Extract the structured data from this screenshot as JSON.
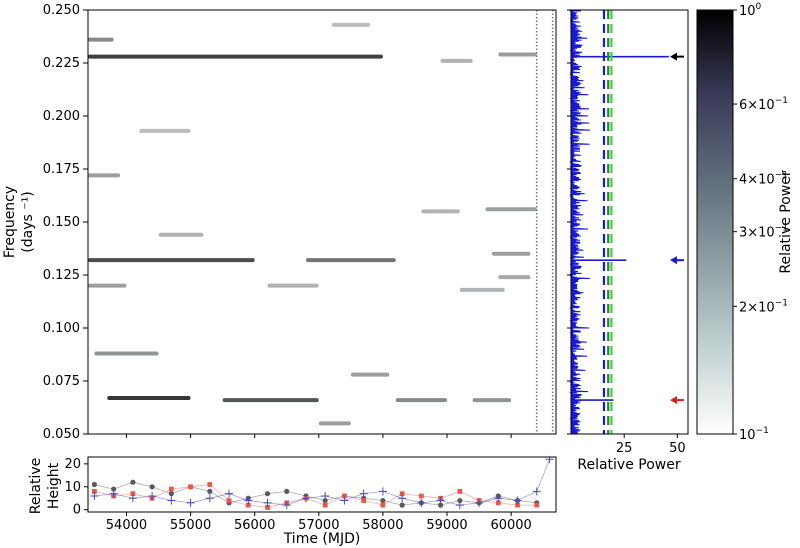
{
  "chart_data": [
    {
      "type": "heatmap",
      "panel": "dynamic-power-spectrum",
      "xlim": [
        53400,
        60700
      ],
      "ylim": [
        0.05,
        0.25
      ],
      "ylabel_line1": "Frequency",
      "ylabel_line2": "(days ⁻¹)",
      "yticks": [
        "0.050",
        "0.075",
        "0.100",
        "0.125",
        "0.150",
        "0.175",
        "0.200",
        "0.225",
        "0.250"
      ],
      "ytick_values": [
        0.05,
        0.075,
        0.1,
        0.125,
        0.15,
        0.175,
        0.2,
        0.225,
        0.25
      ],
      "dotted_markers_x": [
        60400,
        60650
      ],
      "dotted_marker_color": "#2e7d32",
      "features": [
        {
          "x0": 53400,
          "x1": 58000,
          "y": 0.228,
          "intensity": 0.85
        },
        {
          "x0": 53400,
          "x1": 56000,
          "y": 0.132,
          "intensity": 0.8
        },
        {
          "x0": 56800,
          "x1": 58200,
          "y": 0.132,
          "intensity": 0.6
        },
        {
          "x0": 53700,
          "x1": 55000,
          "y": 0.067,
          "intensity": 0.9
        },
        {
          "x0": 55500,
          "x1": 57000,
          "y": 0.066,
          "intensity": 0.75
        },
        {
          "x0": 58200,
          "x1": 59000,
          "y": 0.066,
          "intensity": 0.5
        },
        {
          "x0": 59400,
          "x1": 60000,
          "y": 0.066,
          "intensity": 0.45
        },
        {
          "x0": 53400,
          "x1": 53800,
          "y": 0.236,
          "intensity": 0.5
        },
        {
          "x0": 53400,
          "x1": 53900,
          "y": 0.172,
          "intensity": 0.4
        },
        {
          "x0": 53400,
          "x1": 54000,
          "y": 0.12,
          "intensity": 0.4
        },
        {
          "x0": 53500,
          "x1": 54500,
          "y": 0.088,
          "intensity": 0.45
        },
        {
          "x0": 57500,
          "x1": 58100,
          "y": 0.078,
          "intensity": 0.4
        },
        {
          "x0": 57000,
          "x1": 57500,
          "y": 0.055,
          "intensity": 0.4
        },
        {
          "x0": 58600,
          "x1": 59200,
          "y": 0.155,
          "intensity": 0.3
        },
        {
          "x0": 59600,
          "x1": 60400,
          "y": 0.156,
          "intensity": 0.4
        },
        {
          "x0": 59800,
          "x1": 60300,
          "y": 0.124,
          "intensity": 0.35
        },
        {
          "x0": 59700,
          "x1": 60300,
          "y": 0.135,
          "intensity": 0.4
        },
        {
          "x0": 59800,
          "x1": 60400,
          "y": 0.229,
          "intensity": 0.4
        },
        {
          "x0": 59200,
          "x1": 59900,
          "y": 0.118,
          "intensity": 0.3
        },
        {
          "x0": 56200,
          "x1": 57000,
          "y": 0.12,
          "intensity": 0.3
        },
        {
          "x0": 54500,
          "x1": 55200,
          "y": 0.144,
          "intensity": 0.3
        },
        {
          "x0": 54200,
          "x1": 55000,
          "y": 0.193,
          "intensity": 0.25
        },
        {
          "x0": 57200,
          "x1": 57800,
          "y": 0.243,
          "intensity": 0.25
        },
        {
          "x0": 58900,
          "x1": 59400,
          "y": 0.226,
          "intensity": 0.3
        }
      ]
    },
    {
      "type": "line",
      "panel": "periodogram",
      "xlabel": "Relative Power",
      "xlim": [
        0,
        55
      ],
      "xticks": [
        "25",
        "50"
      ],
      "xtick_values": [
        25,
        50
      ],
      "ylim": [
        0.05,
        0.25
      ],
      "line_color": "#1a1ad0",
      "peaks": [
        {
          "freq": 0.228,
          "power": 46
        },
        {
          "freq": 0.132,
          "power": 26
        },
        {
          "freq": 0.066,
          "power": 20
        }
      ],
      "threshold_lines": [
        {
          "power": 15.5,
          "color": "#1a1ad0"
        },
        {
          "power": 17.5,
          "color": "#2e7d32"
        },
        {
          "power": 19.0,
          "color": "#39d339"
        }
      ],
      "arrows": [
        {
          "freq": 0.228,
          "color": "#000000"
        },
        {
          "freq": 0.132,
          "color": "#1a1ad0"
        },
        {
          "freq": 0.066,
          "color": "#d42020"
        }
      ]
    },
    {
      "type": "scatter",
      "panel": "relative-height",
      "xlabel": "Time (MJD)",
      "ylabel_line1": "Relative",
      "ylabel_line2": "Height",
      "xlim": [
        53400,
        60700
      ],
      "ylim": [
        -1,
        23
      ],
      "xticks": [
        "54000",
        "55000",
        "56000",
        "57000",
        "58000",
        "59000",
        "60000"
      ],
      "xtick_values": [
        54000,
        55000,
        56000,
        57000,
        58000,
        59000,
        60000
      ],
      "yticks": [
        "0",
        "10",
        "20"
      ],
      "ytick_values": [
        0,
        10,
        20
      ],
      "series": [
        {
          "color": "#5a5a5a",
          "marker": "circle",
          "x": [
            53500,
            53800,
            54100,
            54400,
            54700,
            55000,
            55300,
            55600,
            55900,
            56200,
            56500,
            56800,
            57100,
            57400,
            57700,
            58000,
            58300,
            58600,
            58900,
            59200,
            59500,
            59800,
            60100,
            60400
          ],
          "y": [
            11,
            9,
            12,
            10,
            7,
            10,
            8,
            3,
            5,
            7,
            8,
            6,
            4,
            6,
            5,
            4,
            2,
            3,
            2,
            4,
            3,
            6,
            4,
            3
          ]
        },
        {
          "color": "#e55a4e",
          "marker": "square",
          "x": [
            53500,
            53800,
            54100,
            54400,
            54700,
            55000,
            55300,
            55600,
            55900,
            56200,
            56500,
            56800,
            57100,
            57400,
            57700,
            58000,
            58300,
            58600,
            58900,
            59200,
            59500,
            59800,
            60100,
            60400
          ],
          "y": [
            8,
            6,
            7,
            5,
            9,
            10,
            11,
            4,
            2,
            1,
            3,
            5,
            2,
            6,
            4,
            2,
            7,
            6,
            5,
            8,
            4,
            3,
            2,
            2
          ]
        },
        {
          "color": "#4a4ab8",
          "marker": "plus",
          "x": [
            53500,
            53800,
            54100,
            54400,
            54700,
            55000,
            55300,
            55600,
            55900,
            56200,
            56500,
            56800,
            57100,
            57400,
            57700,
            58000,
            58300,
            58600,
            58900,
            59200,
            59500,
            59800,
            60100,
            60400,
            60600
          ],
          "y": [
            6,
            7,
            5,
            6,
            4,
            3,
            5,
            7,
            4,
            3,
            2,
            5,
            6,
            4,
            7,
            8,
            5,
            3,
            4,
            2,
            3,
            5,
            4,
            8,
            22
          ]
        }
      ]
    },
    {
      "type": "colorbar",
      "panel": "colorbar",
      "label": "Relative Power",
      "scale": "log",
      "range": [
        0.1,
        1
      ],
      "ticks": [
        {
          "value": 1.0,
          "base": "10",
          "exp": "0"
        },
        {
          "value": 0.6,
          "base": "6×10",
          "exp": "−1"
        },
        {
          "value": 0.4,
          "base": "4×10",
          "exp": "−1"
        },
        {
          "value": 0.3,
          "base": "3×10",
          "exp": "−1"
        },
        {
          "value": 0.2,
          "base": "2×10",
          "exp": "−1"
        },
        {
          "value": 0.1,
          "base": "10",
          "exp": "−1"
        }
      ]
    }
  ]
}
